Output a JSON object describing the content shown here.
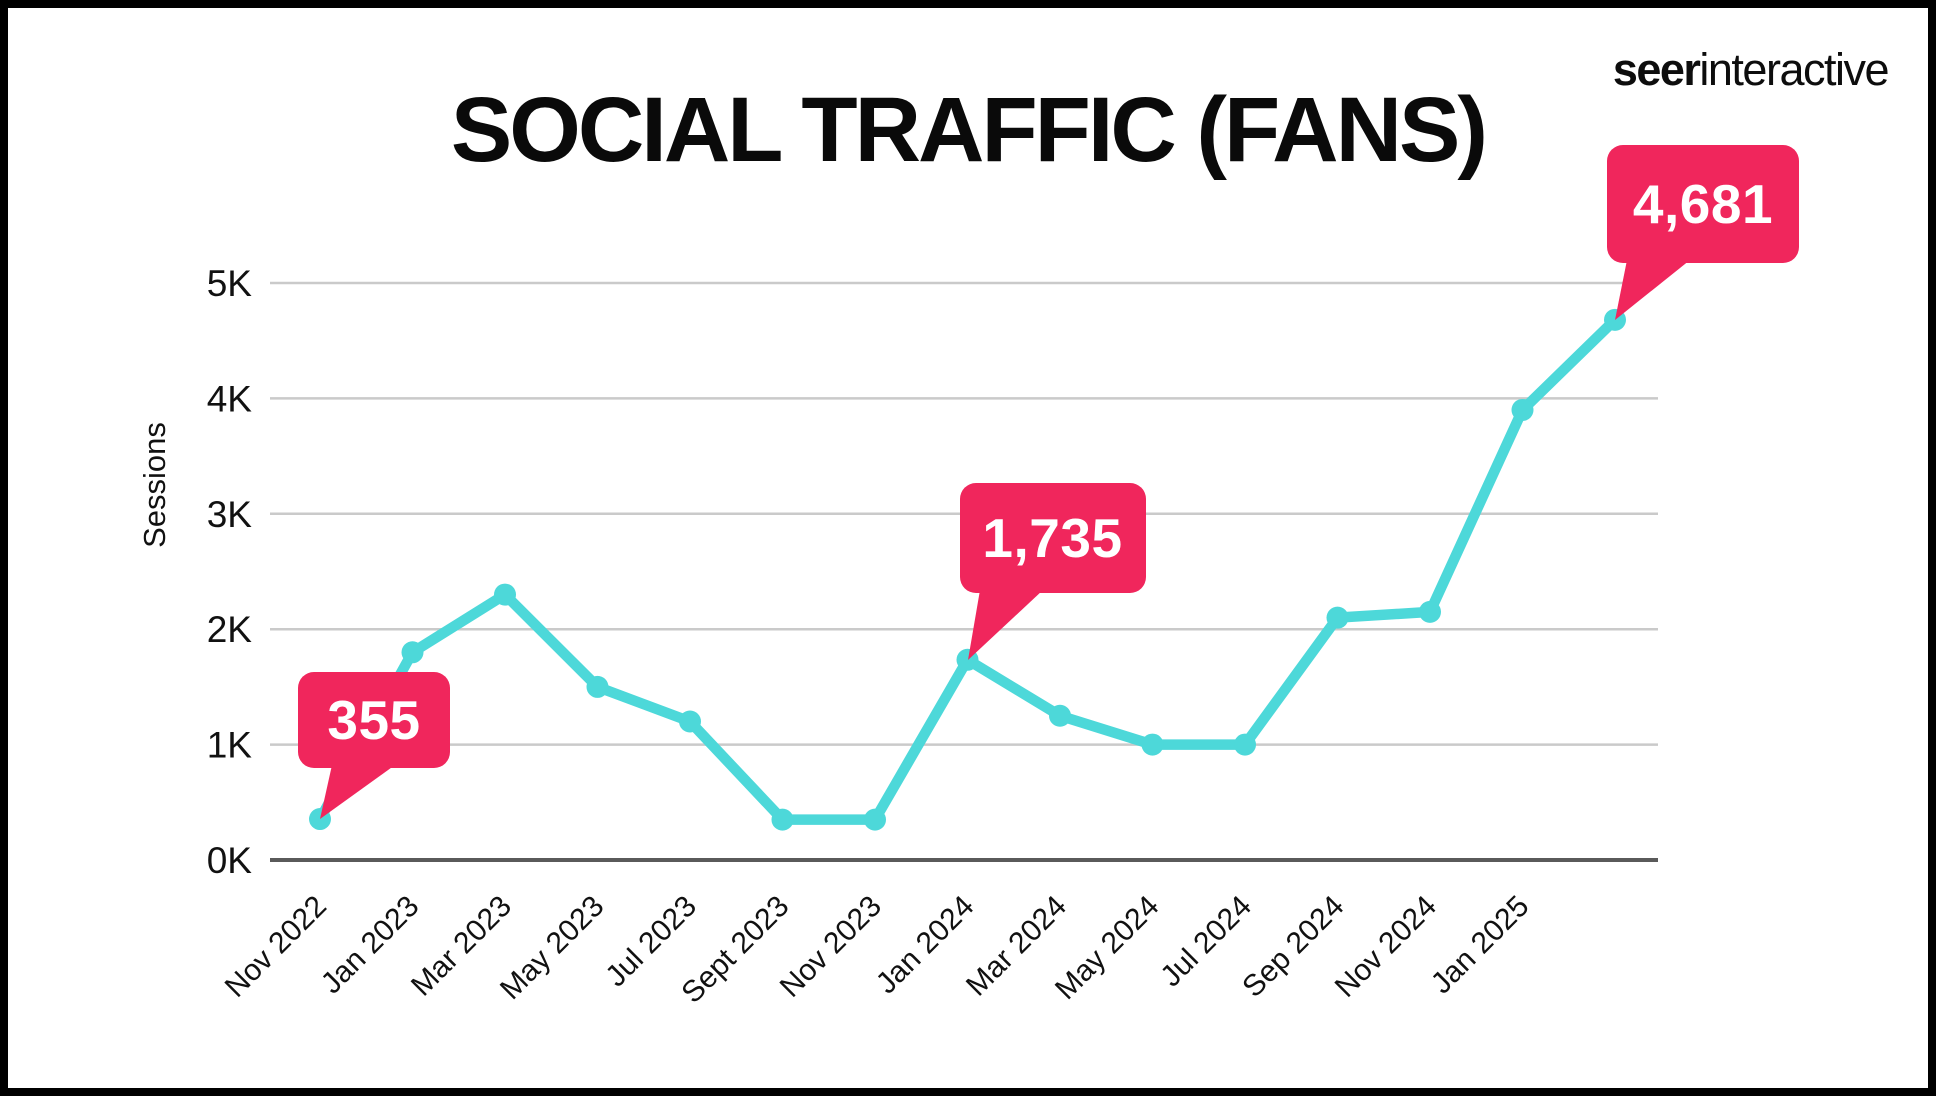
{
  "page": {
    "background": "#FFFFFF",
    "border_color": "#000000"
  },
  "header": {
    "logo": {
      "bold": "seer",
      "regular": "interactive"
    },
    "title": "SOCIAL TRAFFIC (FANS)"
  },
  "chart_data": {
    "type": "line",
    "title": "SOCIAL TRAFFIC (FANS)",
    "xlabel": "",
    "ylabel": "Sessions",
    "ylim": [
      0,
      5000
    ],
    "y_ticks": [
      "0K",
      "1K",
      "2K",
      "3K",
      "4K",
      "5K"
    ],
    "grid": "horizontal",
    "legend": "none",
    "categories": [
      "Nov 2022",
      "Jan 2023",
      "Mar 2023",
      "May 2023",
      "Jul 2023",
      "Sept 2023",
      "Nov 2023",
      "Jan 2024",
      "Mar 2024",
      "May 2024",
      "Jul 2024",
      "Sep 2024",
      "Nov 2024",
      "Jan 2025",
      ""
    ],
    "series": [
      {
        "name": "Sessions",
        "values": [
          355,
          1800,
          2300,
          1500,
          1200,
          350,
          350,
          1735,
          1250,
          1000,
          1000,
          2100,
          2150,
          3900,
          4681
        ]
      }
    ],
    "callouts": [
      {
        "point_index": 0,
        "label": "355"
      },
      {
        "point_index": 7,
        "label": "1,735"
      },
      {
        "point_index": 14,
        "label": "4,681"
      }
    ],
    "colors": {
      "line": "#4DD8D9",
      "callout_bg": "#F0265C",
      "callout_text": "#FFFFFF",
      "gridline": "#CACACA",
      "zero_axis": "#5A5A5A",
      "text": "#111111"
    }
  }
}
